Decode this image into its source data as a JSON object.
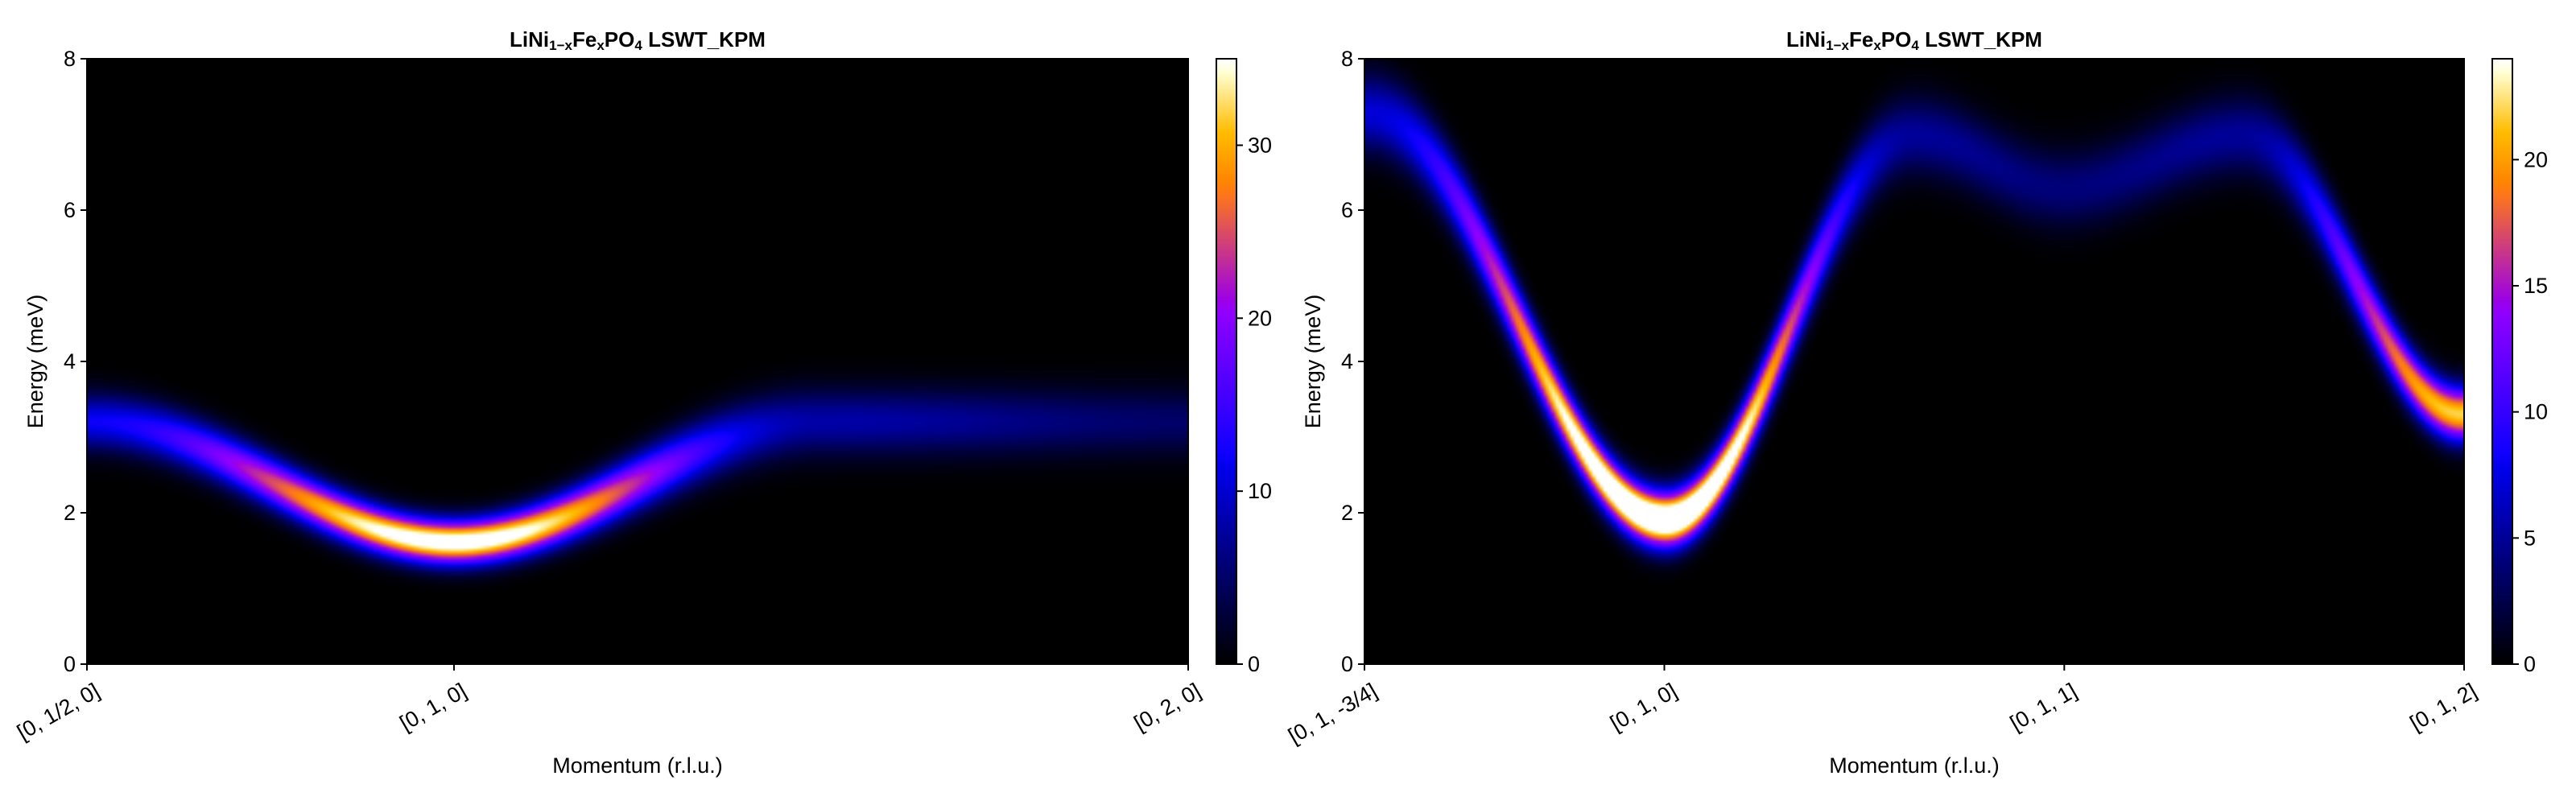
{
  "chart_data": [
    {
      "type": "heatmap",
      "title_parts": [
        {
          "text": "LiNi",
          "sub": false
        },
        {
          "text": "1−x",
          "sub": true
        },
        {
          "text": "Fe",
          "sub": false
        },
        {
          "text": "x",
          "sub": true
        },
        {
          "text": "PO",
          "sub": false
        },
        {
          "text": "4",
          "sub": true
        },
        {
          "text": " LSWT_KPM",
          "sub": false
        }
      ],
      "xlabel": "Momentum (r.l.u.)",
      "ylabel": "Energy (meV)",
      "x_ticks": [
        {
          "pos": 0.0,
          "label": "[0, 1/2, 0]"
        },
        {
          "pos": 0.3333,
          "label": "[0, 1, 0]"
        },
        {
          "pos": 1.0,
          "label": "[0, 2, 0]"
        }
      ],
      "ylim": [
        0,
        8
      ],
      "y_ticks": [
        0,
        2,
        4,
        6,
        8
      ],
      "colorbar": {
        "colormap": "gnuplot2",
        "range": [
          0,
          35
        ],
        "ticks": [
          0,
          10,
          20,
          30
        ]
      },
      "dispersion": {
        "path_x": [
          0.0,
          0.333,
          0.667,
          1.0
        ],
        "energy": [
          3.2,
          1.6,
          3.2,
          3.2
        ],
        "intensity": [
          12,
          38,
          8,
          5
        ],
        "width": [
          0.25,
          0.2,
          0.3,
          0.3
        ]
      }
    },
    {
      "type": "heatmap",
      "title_parts": [
        {
          "text": "LiNi",
          "sub": false
        },
        {
          "text": "1−x",
          "sub": true
        },
        {
          "text": "Fe",
          "sub": false
        },
        {
          "text": "x",
          "sub": true
        },
        {
          "text": "PO",
          "sub": false
        },
        {
          "text": "4",
          "sub": true
        },
        {
          "text": " LSWT_KPM",
          "sub": false
        }
      ],
      "xlabel": "Momentum (r.l.u.)",
      "ylabel": "Energy (meV)",
      "x_ticks": [
        {
          "pos": 0.0,
          "label": "[0, 1, -3/4]"
        },
        {
          "pos": 0.2727,
          "label": "[0, 1, 0]"
        },
        {
          "pos": 0.6364,
          "label": "[0, 1, 1]"
        },
        {
          "pos": 1.0,
          "label": "[0, 1, 2]"
        }
      ],
      "ylim": [
        0,
        8
      ],
      "y_ticks": [
        0,
        2,
        4,
        6,
        8
      ],
      "colorbar": {
        "colormap": "gnuplot2",
        "range": [
          0,
          24
        ],
        "ticks": [
          0,
          5,
          10,
          15,
          20
        ]
      },
      "dispersion": {
        "path_x": [
          0.0,
          0.273,
          0.5,
          0.636,
          0.8,
          1.0
        ],
        "energy": [
          7.3,
          1.9,
          7.0,
          6.3,
          7.0,
          3.3
        ],
        "intensity": [
          7,
          30,
          5,
          4,
          5,
          22
        ],
        "width": [
          0.35,
          0.25,
          0.35,
          0.35,
          0.35,
          0.25
        ]
      }
    }
  ]
}
